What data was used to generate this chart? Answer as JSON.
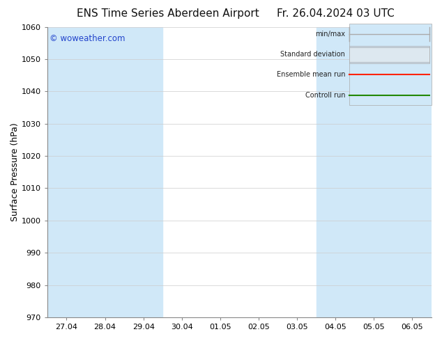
{
  "title_left": "ENS Time Series Aberdeen Airport",
  "title_right": "Fr. 26.04.2024 03 UTC",
  "ylabel": "Surface Pressure (hPa)",
  "watermark": "© woweather.com",
  "ylim": [
    970,
    1060
  ],
  "yticks": [
    970,
    980,
    990,
    1000,
    1010,
    1020,
    1030,
    1040,
    1050,
    1060
  ],
  "x_labels": [
    "27.04",
    "28.04",
    "29.04",
    "30.04",
    "01.05",
    "02.05",
    "03.05",
    "04.05",
    "05.05",
    "06.05"
  ],
  "band_color": "#d0e8f8",
  "background_color": "#ffffff",
  "legend_items": [
    "min/max",
    "Standard deviation",
    "Ensemble mean run",
    "Controll run"
  ],
  "legend_colors_line": [
    "#999999",
    "#bbbbcc",
    "#ff2200",
    "#228800"
  ],
  "grid_color": "#cccccc",
  "title_fontsize": 11,
  "label_fontsize": 9,
  "tick_fontsize": 8,
  "watermark_color": "#2244cc",
  "shaded_day_indices": [
    0,
    1,
    2,
    7,
    8,
    9
  ],
  "right_shade_color": "#d8eaf8"
}
